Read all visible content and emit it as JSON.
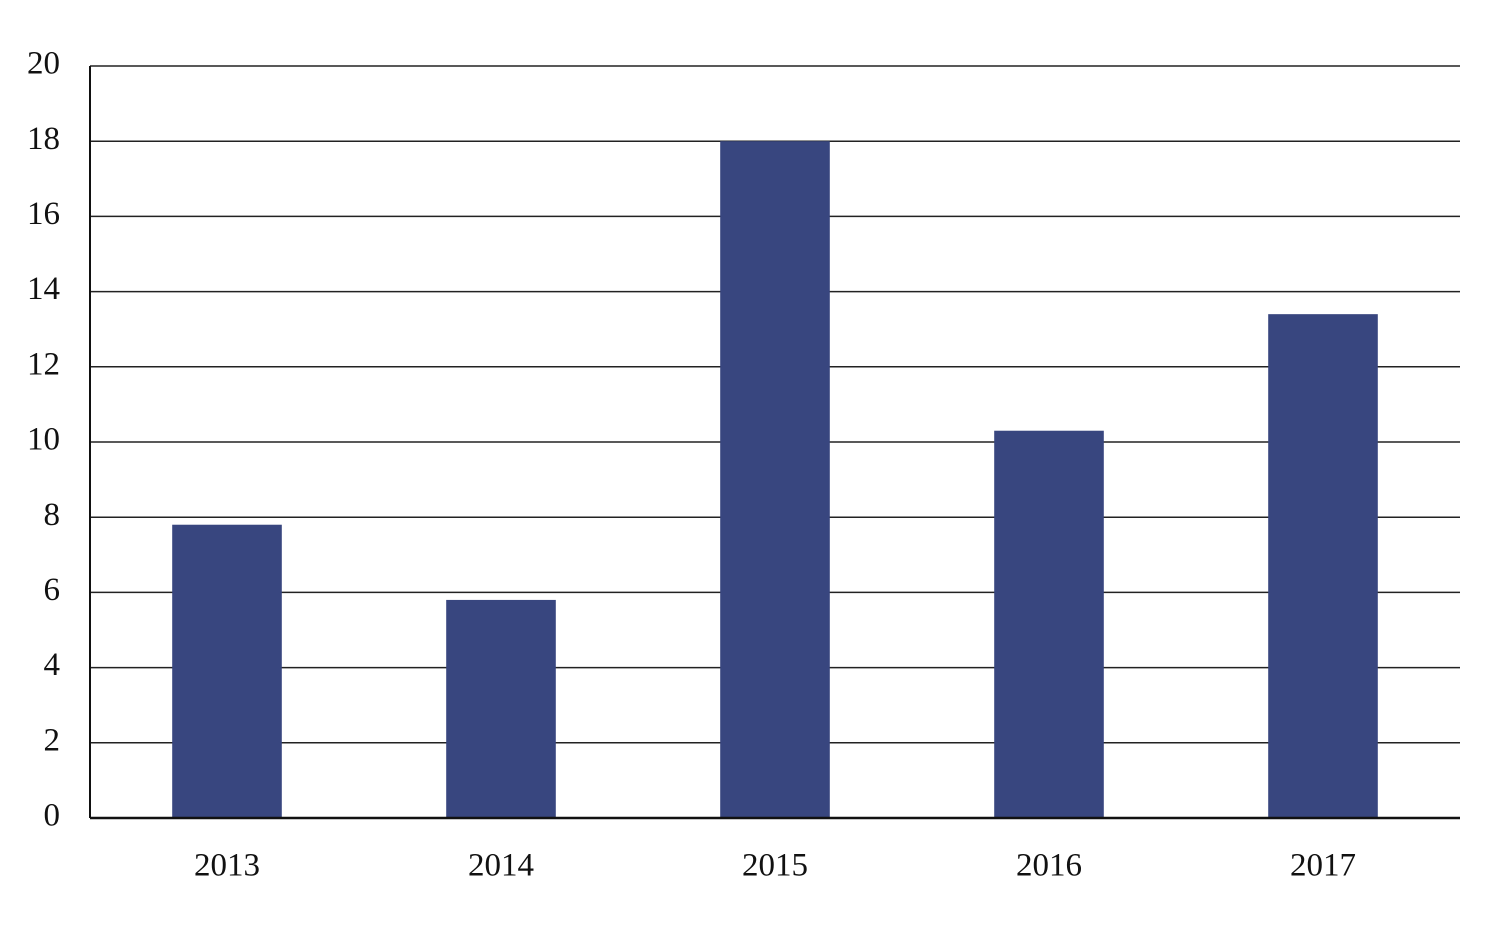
{
  "chart_data": {
    "type": "bar",
    "categories": [
      "2013",
      "2014",
      "2015",
      "2016",
      "2017"
    ],
    "values": [
      7.8,
      5.8,
      18.0,
      10.3,
      13.4
    ],
    "color": "#38467f",
    "ylim": [
      0,
      20
    ],
    "yticks": [
      0,
      2,
      4,
      6,
      8,
      10,
      12,
      14,
      16,
      18,
      20
    ],
    "grid": true
  }
}
